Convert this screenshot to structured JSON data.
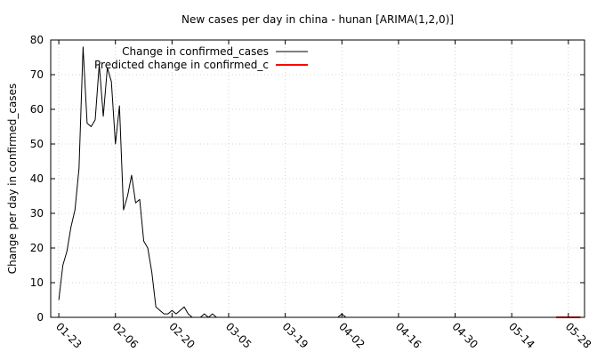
{
  "chart_data": {
    "type": "line",
    "title": "New cases per day in china - hunan [ARIMA(1,2,0)]",
    "xlabel": "",
    "ylabel": "Change per day in confirmed_cases",
    "ylim": [
      0,
      80
    ],
    "yticks": [
      0,
      10,
      20,
      30,
      40,
      50,
      60,
      70,
      80
    ],
    "xlim": [
      "2020-01-21",
      "2020-06-01"
    ],
    "xticks": [
      "2020-01-23",
      "2020-02-06",
      "2020-02-20",
      "2020-03-05",
      "2020-03-19",
      "2020-04-02",
      "2020-04-16",
      "2020-04-30",
      "2020-05-14",
      "2020-05-28"
    ],
    "xtick_labels": [
      "01-23",
      "02-06",
      "02-20",
      "03-05",
      "03-19",
      "04-02",
      "04-16",
      "04-30",
      "05-14",
      "05-28"
    ],
    "grid": true,
    "legend_position": "top-left",
    "series": [
      {
        "name": "Change in confirmed_cases",
        "color": "#000000",
        "x": [
          "2020-01-23",
          "2020-01-24",
          "2020-01-25",
          "2020-01-26",
          "2020-01-27",
          "2020-01-28",
          "2020-01-29",
          "2020-01-30",
          "2020-01-31",
          "2020-02-01",
          "2020-02-02",
          "2020-02-03",
          "2020-02-04",
          "2020-02-05",
          "2020-02-06",
          "2020-02-07",
          "2020-02-08",
          "2020-02-09",
          "2020-02-10",
          "2020-02-11",
          "2020-02-12",
          "2020-02-13",
          "2020-02-14",
          "2020-02-15",
          "2020-02-16",
          "2020-02-17",
          "2020-02-18",
          "2020-02-19",
          "2020-02-20",
          "2020-02-21",
          "2020-02-22",
          "2020-02-23",
          "2020-02-24",
          "2020-02-25",
          "2020-02-26",
          "2020-02-27",
          "2020-02-28",
          "2020-02-29",
          "2020-03-01",
          "2020-03-02",
          "2020-03-03",
          "2020-03-04",
          "2020-03-05",
          "2020-03-06",
          "2020-03-07",
          "2020-03-08",
          "2020-03-09",
          "2020-03-10",
          "2020-03-11",
          "2020-03-12",
          "2020-03-13",
          "2020-03-14",
          "2020-03-15",
          "2020-03-16",
          "2020-03-17",
          "2020-03-18",
          "2020-03-19",
          "2020-03-20",
          "2020-03-21",
          "2020-03-22",
          "2020-03-23",
          "2020-03-24",
          "2020-03-25",
          "2020-03-26",
          "2020-03-27",
          "2020-03-28",
          "2020-03-29",
          "2020-03-30",
          "2020-03-31",
          "2020-04-01",
          "2020-04-02",
          "2020-04-03",
          "2020-04-04",
          "2020-04-05",
          "2020-04-06",
          "2020-04-07",
          "2020-04-08",
          "2020-04-09",
          "2020-04-10",
          "2020-04-11",
          "2020-04-12",
          "2020-04-13",
          "2020-04-14",
          "2020-04-15",
          "2020-04-16",
          "2020-04-17",
          "2020-04-18",
          "2020-04-19",
          "2020-04-20",
          "2020-04-21",
          "2020-04-22",
          "2020-04-23",
          "2020-04-24",
          "2020-04-25",
          "2020-04-26",
          "2020-04-27",
          "2020-04-28",
          "2020-04-29",
          "2020-04-30",
          "2020-05-01",
          "2020-05-02",
          "2020-05-03",
          "2020-05-04",
          "2020-05-05",
          "2020-05-06",
          "2020-05-07",
          "2020-05-08",
          "2020-05-09",
          "2020-05-10",
          "2020-05-11",
          "2020-05-12",
          "2020-05-13",
          "2020-05-14",
          "2020-05-15",
          "2020-05-16",
          "2020-05-17",
          "2020-05-18",
          "2020-05-19",
          "2020-05-20",
          "2020-05-21",
          "2020-05-22",
          "2020-05-23",
          "2020-05-24",
          "2020-05-25",
          "2020-05-26",
          "2020-05-27",
          "2020-05-28",
          "2020-05-29",
          "2020-05-30",
          "2020-05-31"
        ],
        "values": [
          5,
          15,
          19,
          26,
          31,
          43,
          78,
          56,
          55,
          57,
          73,
          58,
          72,
          68,
          50,
          61,
          31,
          35,
          41,
          33,
          34,
          22,
          20,
          13,
          3,
          2,
          1,
          1,
          2,
          1,
          2,
          3,
          1,
          0,
          0,
          0,
          1,
          0,
          1,
          0,
          0,
          0,
          0,
          0,
          0,
          0,
          0,
          0,
          0,
          0,
          0,
          0,
          0,
          0,
          0,
          0,
          0,
          0,
          0,
          0,
          0,
          0,
          0,
          0,
          0,
          0,
          0,
          0,
          0,
          0,
          1,
          0,
          0,
          0,
          0,
          0,
          0,
          0,
          0,
          0,
          0,
          0,
          0,
          0,
          0,
          0,
          0,
          0,
          0,
          0,
          0,
          0,
          0,
          0,
          0,
          0,
          0,
          0,
          0,
          0,
          0,
          0,
          0,
          0,
          0,
          0,
          0,
          0,
          0,
          0,
          0,
          0,
          0,
          0,
          0,
          0,
          0,
          0,
          0,
          0,
          0,
          0,
          0,
          0,
          0,
          0,
          0,
          0,
          0,
          0
        ]
      },
      {
        "name": "Predicted change in confirmed_c",
        "color": "#ff0000",
        "x": [
          "2020-05-25",
          "2020-05-26",
          "2020-05-27",
          "2020-05-28",
          "2020-05-29",
          "2020-05-30",
          "2020-05-31"
        ],
        "values": [
          0,
          0,
          0,
          0,
          0,
          0,
          0
        ]
      }
    ]
  }
}
